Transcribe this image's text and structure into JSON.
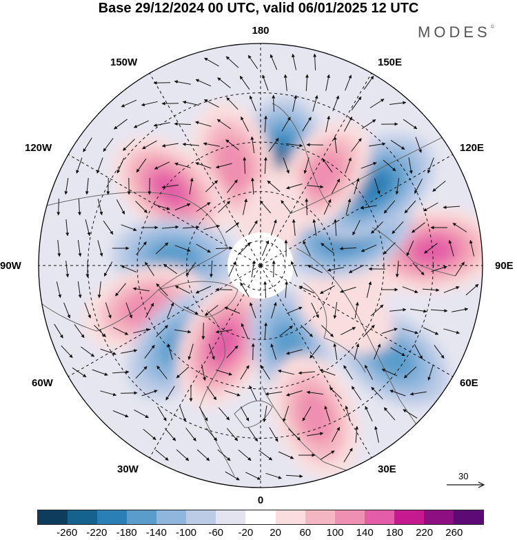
{
  "title": "Base 29/12/2024 00 UTC, valid 06/01/2025 12 UTC",
  "brand": "MODES",
  "brand_mark": "©",
  "longitude_labels": {
    "lon_180": "180",
    "lon_150E": "150E",
    "lon_120E": "120E",
    "lon_90E": "90E",
    "lon_60E": "60E",
    "lon_30E": "30E",
    "lon_0": "0",
    "lon_30W": "30W",
    "lon_60W": "60W",
    "lon_90W": "90W",
    "lon_120W": "120W",
    "lon_150W": "150W"
  },
  "reference_vector": {
    "label": "30"
  },
  "colorbar": {
    "colors": [
      "#0e3c5c",
      "#15628f",
      "#2a7fb6",
      "#5a9dcc",
      "#8fb6dc",
      "#bccbe6",
      "#e4e4f0",
      "#ffffff",
      "#fadede",
      "#f4b6c0",
      "#ef8fb1",
      "#e35ea6",
      "#c6198f",
      "#8e0f82",
      "#5c0a74"
    ],
    "ticks": [
      "-260",
      "-220",
      "-180",
      "-140",
      "-100",
      "-60",
      "-20",
      "20",
      "60",
      "100",
      "140",
      "180",
      "220",
      "260"
    ]
  },
  "anomaly_centres": [
    {
      "lon": 170,
      "lat": 50,
      "value": -220
    },
    {
      "lon": -165,
      "lat": 48,
      "value": 170
    },
    {
      "lon": -130,
      "lat": 42,
      "value": 180
    },
    {
      "lon": -95,
      "lat": 55,
      "value": -150
    },
    {
      "lon": -70,
      "lat": 40,
      "value": 160
    },
    {
      "lon": -45,
      "lat": 45,
      "value": -170
    },
    {
      "lon": -25,
      "lat": 55,
      "value": 190
    },
    {
      "lon": 20,
      "lat": 55,
      "value": -140
    },
    {
      "lon": 20,
      "lat": 25,
      "value": 170
    },
    {
      "lon": 55,
      "lat": 25,
      "value": -160
    },
    {
      "lon": 60,
      "lat": 50,
      "value": 80
    },
    {
      "lon": 90,
      "lat": 50,
      "value": 90
    },
    {
      "lon": 95,
      "lat": 20,
      "value": 190
    },
    {
      "lon": 110,
      "lat": 52,
      "value": -180
    },
    {
      "lon": 125,
      "lat": 35,
      "value": -200
    },
    {
      "lon": 145,
      "lat": 45,
      "value": 140
    },
    {
      "lon": 165,
      "lat": 70,
      "value": 60
    }
  ]
}
